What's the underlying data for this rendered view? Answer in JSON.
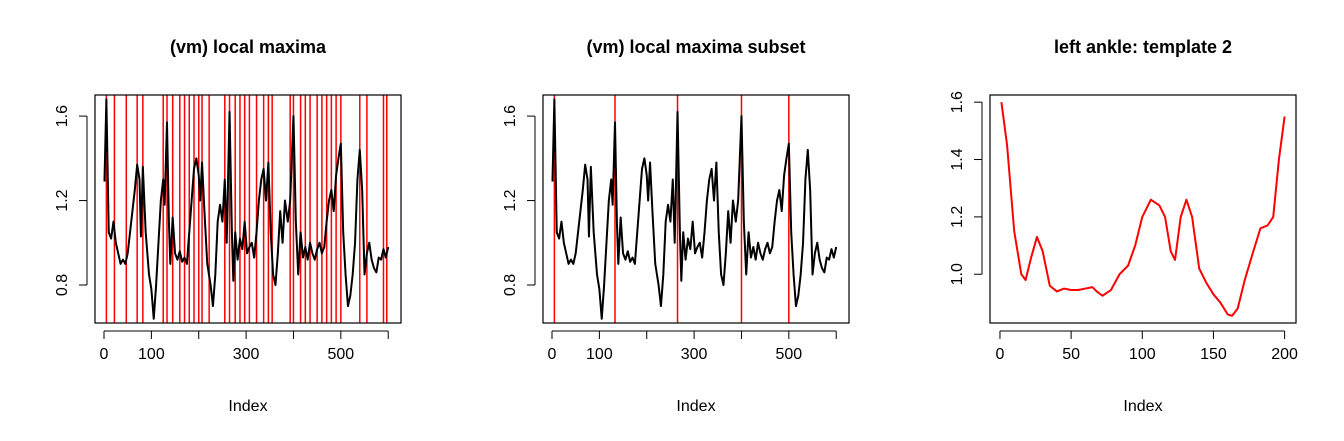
{
  "chart_data": [
    {
      "type": "line",
      "title": "(vm) local maxima",
      "xlabel": "Index",
      "color": "#000000",
      "x": [
        1,
        5,
        10,
        15,
        20,
        25,
        30,
        35,
        40,
        45,
        50,
        55,
        60,
        65,
        70,
        75,
        78,
        82,
        88,
        95,
        100,
        105,
        110,
        115,
        120,
        125,
        128,
        133,
        137,
        140,
        145,
        150,
        155,
        160,
        165,
        170,
        175,
        180,
        185,
        190,
        195,
        200,
        203,
        207,
        212,
        218,
        225,
        230,
        235,
        240,
        245,
        250,
        255,
        259,
        265,
        270,
        273,
        277,
        282,
        287,
        292,
        297,
        302,
        307,
        312,
        317,
        322,
        327,
        332,
        337,
        342,
        347,
        352,
        357,
        362,
        367,
        372,
        377,
        382,
        388,
        393,
        400,
        405,
        410,
        415,
        420,
        425,
        430,
        435,
        440,
        445,
        450,
        455,
        460,
        465,
        470,
        475,
        480,
        485,
        490,
        495,
        500,
        505,
        510,
        515,
        520,
        525,
        530,
        535,
        540,
        545,
        550,
        555,
        560,
        565,
        570,
        575,
        580,
        585,
        590,
        595,
        600
      ],
      "values": [
        1.29,
        1.68,
        1.05,
        1.02,
        1.1,
        1.0,
        0.95,
        0.9,
        0.92,
        0.9,
        0.95,
        1.05,
        1.15,
        1.25,
        1.37,
        1.3,
        1.03,
        1.36,
        1.05,
        0.85,
        0.78,
        0.64,
        0.8,
        1.0,
        1.2,
        1.3,
        1.18,
        1.57,
        1.1,
        0.9,
        1.12,
        0.95,
        0.92,
        0.96,
        0.91,
        0.93,
        0.9,
        1.05,
        1.2,
        1.35,
        1.4,
        1.32,
        1.2,
        1.38,
        1.15,
        0.9,
        0.8,
        0.7,
        0.85,
        1.1,
        1.18,
        1.1,
        1.3,
        1.0,
        1.62,
        1.05,
        0.82,
        1.05,
        0.92,
        1.02,
        0.97,
        1.1,
        0.95,
        0.98,
        1.0,
        0.93,
        1.05,
        1.2,
        1.3,
        1.35,
        1.2,
        1.38,
        1.05,
        0.85,
        0.8,
        0.95,
        1.15,
        1.0,
        1.2,
        1.1,
        1.2,
        1.6,
        1.1,
        0.85,
        1.05,
        0.93,
        0.98,
        0.92,
        1.0,
        0.95,
        0.92,
        0.97,
        1.0,
        0.95,
        0.98,
        1.1,
        1.2,
        1.25,
        1.15,
        1.32,
        1.4,
        1.47,
        1.05,
        0.85,
        0.7,
        0.75,
        0.85,
        1.0,
        1.3,
        1.44,
        1.25,
        0.85,
        0.95,
        1.0,
        0.92,
        0.88,
        0.86,
        0.93,
        0.92,
        0.97,
        0.93,
        0.98
      ],
      "vlines": {
        "color": "#ff0000",
        "values": [
          5,
          22,
          47,
          70,
          82,
          125,
          133,
          145,
          160,
          170,
          180,
          190,
          200,
          207,
          222,
          255,
          265,
          277,
          287,
          297,
          307,
          322,
          337,
          347,
          355,
          393,
          400,
          415,
          425,
          435,
          450,
          460,
          470,
          480,
          490,
          500,
          540,
          555,
          590,
          597
        ]
      },
      "xlim": [
        -19,
        627
      ],
      "ylim": [
        0.62,
        1.7
      ],
      "xticks": [
        0,
        100,
        300,
        500
      ],
      "xticks_unlabeled": [
        200,
        400,
        600
      ],
      "yticks": [
        0.8,
        1.2,
        1.6
      ]
    },
    {
      "type": "line",
      "title": "(vm) local maxima subset",
      "xlabel": "Index",
      "color": "#000000",
      "x": [
        1,
        5,
        10,
        15,
        20,
        25,
        30,
        35,
        40,
        45,
        50,
        55,
        60,
        65,
        70,
        75,
        78,
        82,
        88,
        95,
        100,
        105,
        110,
        115,
        120,
        125,
        128,
        133,
        137,
        140,
        145,
        150,
        155,
        160,
        165,
        170,
        175,
        180,
        185,
        190,
        195,
        200,
        203,
        207,
        212,
        218,
        225,
        230,
        235,
        240,
        245,
        250,
        255,
        259,
        265,
        270,
        273,
        277,
        282,
        287,
        292,
        297,
        302,
        307,
        312,
        317,
        322,
        327,
        332,
        337,
        342,
        347,
        352,
        357,
        362,
        367,
        372,
        377,
        382,
        388,
        393,
        400,
        405,
        410,
        415,
        420,
        425,
        430,
        435,
        440,
        445,
        450,
        455,
        460,
        465,
        470,
        475,
        480,
        485,
        490,
        495,
        500,
        505,
        510,
        515,
        520,
        525,
        530,
        535,
        540,
        545,
        550,
        555,
        560,
        565,
        570,
        575,
        580,
        585,
        590,
        595,
        600
      ],
      "values": [
        1.29,
        1.68,
        1.05,
        1.02,
        1.1,
        1.0,
        0.95,
        0.9,
        0.92,
        0.9,
        0.95,
        1.05,
        1.15,
        1.25,
        1.37,
        1.3,
        1.03,
        1.36,
        1.05,
        0.85,
        0.78,
        0.64,
        0.8,
        1.0,
        1.2,
        1.3,
        1.18,
        1.57,
        1.1,
        0.9,
        1.12,
        0.95,
        0.92,
        0.96,
        0.91,
        0.93,
        0.9,
        1.05,
        1.2,
        1.35,
        1.4,
        1.32,
        1.2,
        1.38,
        1.15,
        0.9,
        0.8,
        0.7,
        0.85,
        1.1,
        1.18,
        1.1,
        1.3,
        1.0,
        1.62,
        1.05,
        0.82,
        1.05,
        0.92,
        1.02,
        0.97,
        1.1,
        0.95,
        0.98,
        1.0,
        0.93,
        1.05,
        1.2,
        1.3,
        1.35,
        1.2,
        1.38,
        1.05,
        0.85,
        0.8,
        0.95,
        1.15,
        1.0,
        1.2,
        1.1,
        1.2,
        1.6,
        1.1,
        0.85,
        1.05,
        0.93,
        0.98,
        0.92,
        1.0,
        0.95,
        0.92,
        0.97,
        1.0,
        0.95,
        0.98,
        1.1,
        1.2,
        1.25,
        1.15,
        1.32,
        1.4,
        1.47,
        1.05,
        0.85,
        0.7,
        0.75,
        0.85,
        1.0,
        1.3,
        1.44,
        1.25,
        0.85,
        0.95,
        1.0,
        0.92,
        0.88,
        0.86,
        0.93,
        0.92,
        0.97,
        0.93,
        0.98
      ],
      "vlines": {
        "color": "#ff0000",
        "values": [
          5,
          133,
          265,
          400,
          500
        ]
      },
      "xlim": [
        -19,
        627
      ],
      "ylim": [
        0.62,
        1.7
      ],
      "xticks": [
        0,
        100,
        300,
        500
      ],
      "xticks_unlabeled": [
        200,
        400,
        600
      ],
      "yticks": [
        0.8,
        1.2,
        1.6
      ]
    },
    {
      "type": "line",
      "title": "left ankle: template 2",
      "xlabel": "Index",
      "color": "#ff0000",
      "x": [
        1,
        5,
        10,
        15,
        18,
        22,
        26,
        30,
        35,
        40,
        45,
        50,
        55,
        60,
        65,
        68,
        72,
        78,
        84,
        90,
        95,
        100,
        106,
        112,
        116,
        120,
        123,
        127,
        131,
        135,
        140,
        145,
        150,
        155,
        160,
        163,
        167,
        172,
        178,
        183,
        188,
        192,
        196,
        200
      ],
      "values": [
        1.6,
        1.45,
        1.15,
        1.0,
        0.98,
        1.06,
        1.13,
        1.08,
        0.96,
        0.94,
        0.95,
        0.945,
        0.945,
        0.95,
        0.955,
        0.94,
        0.925,
        0.945,
        1.0,
        1.03,
        1.1,
        1.2,
        1.26,
        1.24,
        1.2,
        1.08,
        1.05,
        1.2,
        1.26,
        1.2,
        1.02,
        0.97,
        0.93,
        0.9,
        0.86,
        0.855,
        0.88,
        0.98,
        1.08,
        1.16,
        1.17,
        1.2,
        1.4,
        1.55
      ],
      "xlim": [
        -7,
        208
      ],
      "ylim": [
        0.83,
        1.625
      ],
      "xticks": [
        0,
        50,
        100,
        150,
        200
      ],
      "yticks": [
        {
          "value": 1,
          "label": "1.0"
        },
        1.2,
        1.4,
        1.6
      ]
    }
  ]
}
